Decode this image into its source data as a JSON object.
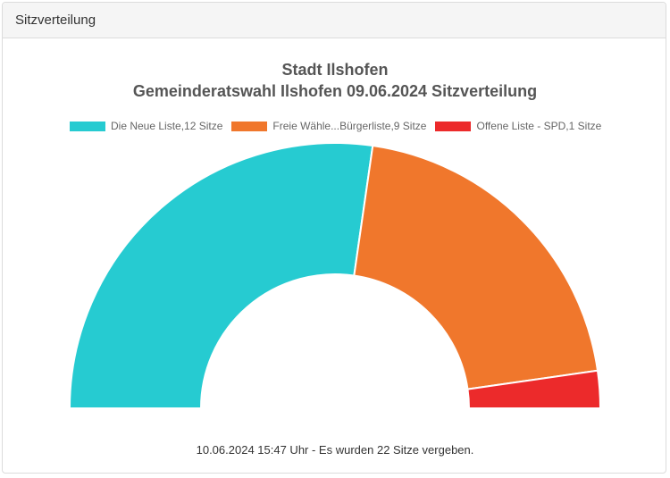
{
  "panel": {
    "title": "Sitzverteilung"
  },
  "chart_data": {
    "type": "pie",
    "subtype": "semicircle-doughnut",
    "title": "Stadt Ilshofen",
    "subtitle": "Gemeinderatswahl Ilshofen 09.06.2024 Sitzverteilung",
    "legend_position": "top",
    "series": [
      {
        "name": "Die Neue Liste",
        "legend": "Die Neue Liste,12 Sitze",
        "value": 12,
        "color": "#26cbd1"
      },
      {
        "name": "Freie Wähle...Bürgerliste",
        "legend": "Freie Wähle...Bürgerliste,9 Sitze",
        "value": 9,
        "color": "#f0772c"
      },
      {
        "name": "Offene Liste - SPD",
        "legend": "Offene Liste - SPD,1 Sitze",
        "value": 1,
        "color": "#ec2a2b"
      }
    ],
    "total": 22
  },
  "footer": {
    "text": "10.06.2024 15:47 Uhr - Es wurden 22 Sitze vergeben."
  }
}
